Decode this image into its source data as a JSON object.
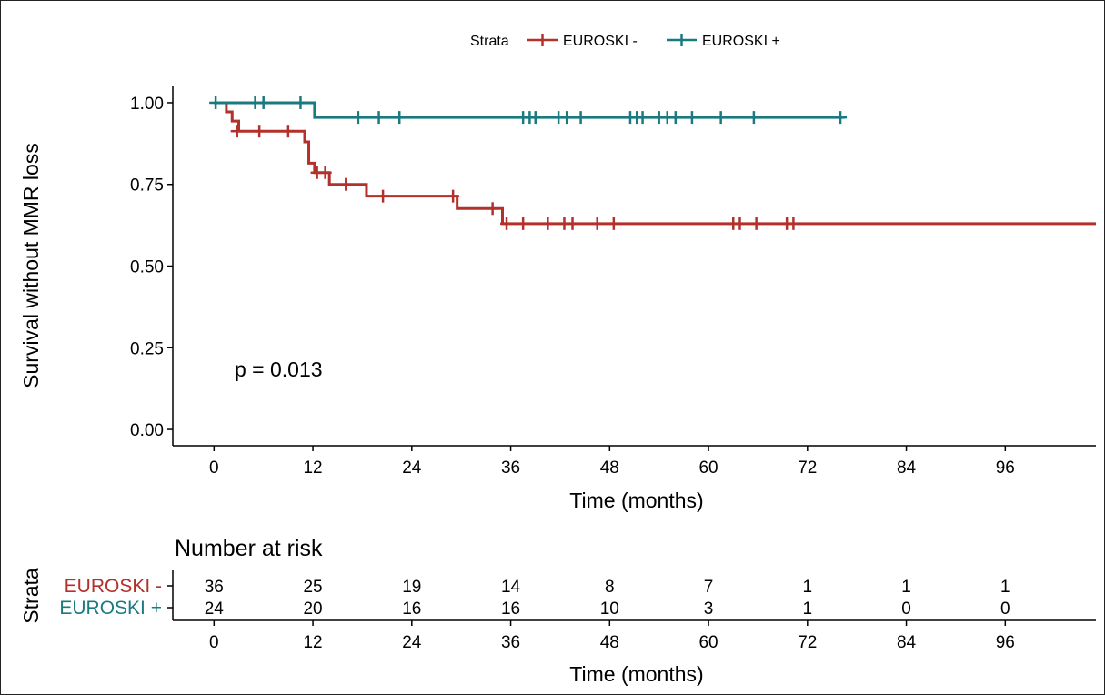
{
  "chart_data": [
    {
      "type": "line",
      "subtype": "kaplan-meier",
      "ylabel": "Survival without MMR loss",
      "xlabel": "Time (months)",
      "xticks": [
        0,
        12,
        24,
        36,
        48,
        60,
        72,
        84,
        96
      ],
      "yticks": [
        0.0,
        0.25,
        0.5,
        0.75,
        1.0
      ],
      "ytick_labels": [
        "0.00",
        "0.25",
        "0.50",
        "0.75",
        "1.00"
      ],
      "xlim": [
        -5,
        107
      ],
      "ylim": [
        -0.05,
        1.05
      ],
      "annotation": "p = 0.013",
      "grid": false,
      "legend": {
        "title": "Strata",
        "position": "top",
        "entries": [
          "EUROSKI -",
          "EUROSKI +"
        ]
      },
      "series": [
        {
          "name": "EUROSKI -",
          "color": "#b2312b",
          "steps": [
            [
              0,
              1.0
            ],
            [
              1.5,
              0.972
            ],
            [
              2.2,
              0.944
            ],
            [
              3.0,
              0.913
            ],
            [
              11.0,
              0.88
            ],
            [
              11.5,
              0.815
            ],
            [
              12.2,
              0.786
            ],
            [
              14.0,
              0.75
            ],
            [
              18.5,
              0.714
            ],
            [
              29.5,
              0.676
            ],
            [
              35.0,
              0.63
            ],
            [
              107,
              0.63
            ]
          ],
          "censored": [
            [
              2.8,
              0.913
            ],
            [
              5.5,
              0.913
            ],
            [
              9.0,
              0.913
            ],
            [
              12.5,
              0.786
            ],
            [
              13.5,
              0.786
            ],
            [
              16.0,
              0.75
            ],
            [
              20.5,
              0.714
            ],
            [
              29.0,
              0.714
            ],
            [
              33.8,
              0.676
            ],
            [
              35.5,
              0.63
            ],
            [
              37.5,
              0.63
            ],
            [
              40.5,
              0.63
            ],
            [
              42.5,
              0.63
            ],
            [
              43.5,
              0.63
            ],
            [
              46.5,
              0.63
            ],
            [
              48.5,
              0.63
            ],
            [
              63.0,
              0.63
            ],
            [
              63.8,
              0.63
            ],
            [
              65.8,
              0.63
            ],
            [
              69.5,
              0.63
            ],
            [
              70.3,
              0.63
            ]
          ]
        },
        {
          "name": "EUROSKI +",
          "color": "#1a7a80",
          "steps": [
            [
              0,
              1.0
            ],
            [
              12.2,
              0.955
            ],
            [
              76.5,
              0.955
            ]
          ],
          "censored": [
            [
              0.2,
              1.0
            ],
            [
              5.0,
              1.0
            ],
            [
              6.0,
              1.0
            ],
            [
              10.5,
              1.0
            ],
            [
              17.5,
              0.955
            ],
            [
              20.0,
              0.955
            ],
            [
              22.5,
              0.955
            ],
            [
              37.5,
              0.955
            ],
            [
              38.3,
              0.955
            ],
            [
              39.0,
              0.955
            ],
            [
              41.8,
              0.955
            ],
            [
              42.8,
              0.955
            ],
            [
              44.5,
              0.955
            ],
            [
              50.5,
              0.955
            ],
            [
              51.3,
              0.955
            ],
            [
              52.0,
              0.955
            ],
            [
              54.0,
              0.955
            ],
            [
              55.0,
              0.955
            ],
            [
              56.0,
              0.955
            ],
            [
              58.0,
              0.955
            ],
            [
              61.5,
              0.955
            ],
            [
              65.5,
              0.955
            ],
            [
              76.0,
              0.955
            ]
          ]
        }
      ]
    },
    {
      "type": "table",
      "title": "Number at risk",
      "ylabel": "Strata",
      "xlabel": "Time (months)",
      "xticks": [
        0,
        12,
        24,
        36,
        48,
        60,
        72,
        84,
        96
      ],
      "rows": [
        {
          "name": "EUROSKI -",
          "color": "#b2312b",
          "values": [
            36,
            25,
            19,
            14,
            8,
            7,
            1,
            1,
            1
          ]
        },
        {
          "name": "EUROSKI +",
          "color": "#1a7a80",
          "values": [
            24,
            20,
            16,
            16,
            10,
            3,
            1,
            0,
            0
          ]
        }
      ]
    }
  ]
}
